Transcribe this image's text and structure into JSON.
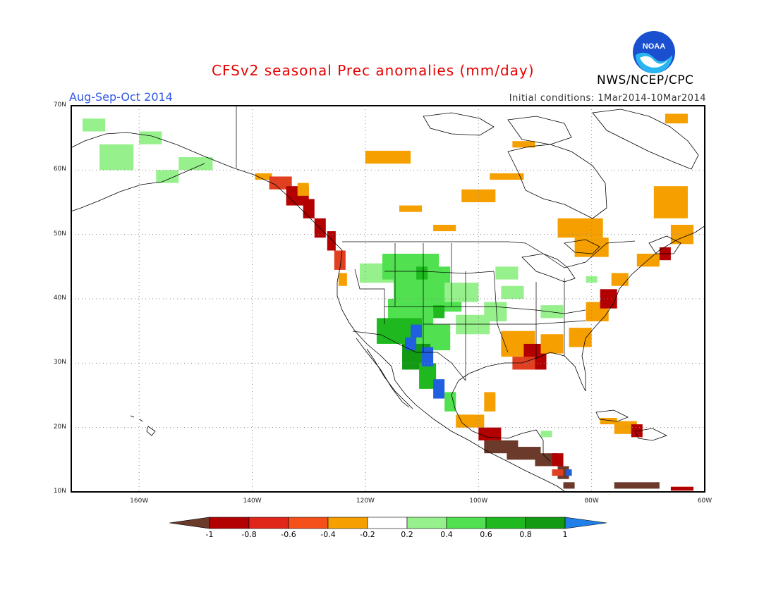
{
  "header": {
    "title": "CFSv2 seasonal Prec anomalies (mm/day)",
    "season": "Aug-Sep-Oct 2014",
    "initial_conditions": "Initial conditions: 1Mar2014-10Mar2014",
    "agency": "NWS/NCEP/CPC",
    "logo_text": "NOAA"
  },
  "map": {
    "lon_range": [
      -172,
      -60
    ],
    "lat_range": [
      10,
      70
    ],
    "lat_labels": [
      "70N",
      "60N",
      "50N",
      "40N",
      "30N",
      "20N",
      "10N"
    ],
    "lon_labels": [
      "160W",
      "140W",
      "120W",
      "100W",
      "80W",
      "60W"
    ],
    "colors": {
      "dry_extreme": "#6b3a2a",
      "dry_strong": "#b30000",
      "dry_mod": "#e04020",
      "dry_light": "#f0501a",
      "dry_weak": "#f5a000",
      "wet_weak": "#96f08c",
      "wet_light": "#50e050",
      "wet_mod": "#1fb91f",
      "wet_strong": "#139a13",
      "wet_extreme": "#2060e0"
    }
  },
  "colorbar": {
    "labels": [
      "-1",
      "-0.8",
      "-0.6",
      "-0.4",
      "-0.2",
      "0.2",
      "0.4",
      "0.6",
      "0.8",
      "1"
    ],
    "colors": [
      "#b30000",
      "#e0251a",
      "#f5501a",
      "#f5a000",
      "#ffffff",
      "#96f08c",
      "#50e050",
      "#1fb91f",
      "#139a13"
    ],
    "low_end_color": "#6b3a2a",
    "high_end_color": "#2080e8"
  }
}
